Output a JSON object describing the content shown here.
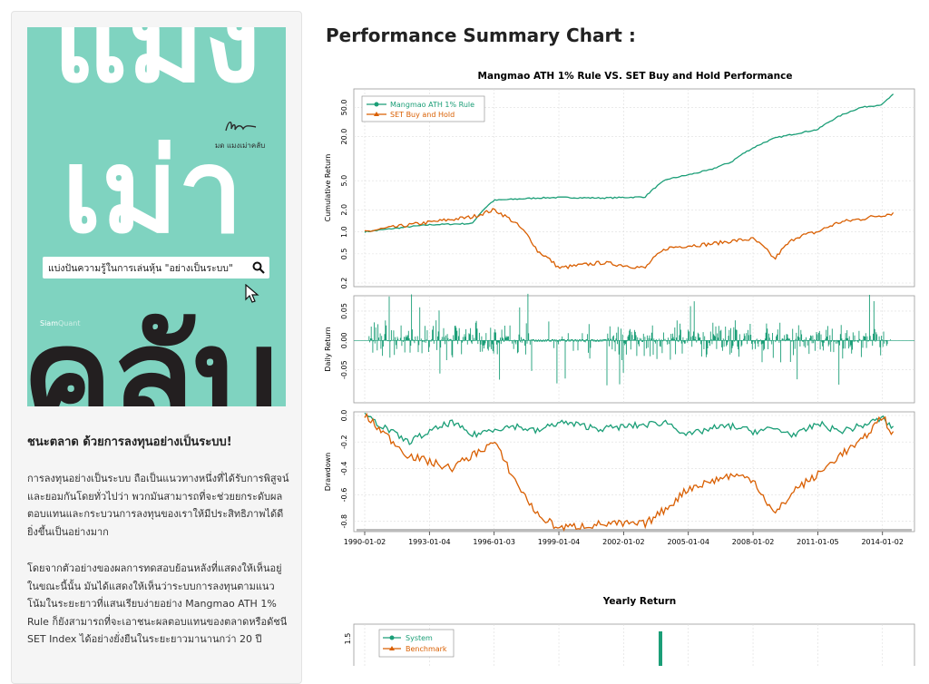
{
  "sidebar": {
    "cover": {
      "big_word_1": "แมง",
      "big_word_2": "เม่า",
      "big_word_3": "คลับ",
      "author": "มด แมงเม่าคลับ",
      "tagline": "แบ่งปันความรู้ในการเล่นหุ้น \"อย่างเป็นระบบ\"",
      "brand_a": "Siam",
      "brand_b": "Quant"
    },
    "heading": "ชนะตลาด ด้วยการลงทุนอย่างเป็นระบบ!",
    "paragraph_1": "การลงทุนอย่างเป็นระบบ ถือเป็นแนวทางหนึ่งที่ได้รับการพิสูจน์และยอมกันโดยทั่วไปว่า พวกมันสามารถที่จะช่วยยกระดับผลตอบแทนและกระบวนการลงทุนของเราให้มีประสิทธิภาพได้ดียิ่งขึ้นเป็นอย่างมาก",
    "paragraph_2": "โดยจากตัวอย่างของผลการทดสอบย้อนหลังที่แสดงให้เห็นอยู่ในขณะนี้นั้น มันได้แสดงให้เห็นว่าระบบการลงทุนตามแนวโน้มในระยะยาวที่แสนเรียบง่ายอย่าง Mangmao ATH 1% Rule ก็ยังสามารถที่จะเอาชนะผลตอบแทนของตลาดหรือดัชนี SET Index ได้อย่างยั่งยืนในระยะยาวมานานกว่า 20 ปี"
  },
  "main": {
    "title": "Performance Summary Chart :"
  },
  "colors": {
    "system": "#1b9e77",
    "benchmark": "#d95f02"
  },
  "chart_data": [
    {
      "type": "line",
      "title": "Mangmao ATH 1% Rule VS. SET Buy and Hold Performance",
      "ylabel": "Cumulative Return",
      "scale": "log",
      "ylim": [
        0.2,
        80
      ],
      "yticks": [
        "0.2",
        "0.5",
        "1.0",
        "2.0",
        "5.0",
        "20.0",
        "50.0"
      ],
      "legend": [
        "Mangmao ATH 1% Rule",
        "SET Buy and Hold"
      ],
      "legend_position": "top-left",
      "x": [
        "1990",
        "1993",
        "1995",
        "1996",
        "1997",
        "1998",
        "1999",
        "2001",
        "2003",
        "2004",
        "2005",
        "2006",
        "2007",
        "2008",
        "2009",
        "2010",
        "2011",
        "2012",
        "2013",
        "2014",
        "2014.5"
      ],
      "series": [
        {
          "name": "Mangmao ATH 1% Rule",
          "values": [
            1.0,
            1.25,
            1.3,
            2.7,
            2.8,
            2.9,
            2.95,
            2.9,
            3.0,
            5.2,
            6.0,
            7.0,
            9.0,
            14.0,
            19.0,
            22.0,
            25.0,
            38.0,
            50.0,
            55.0,
            75.0
          ]
        },
        {
          "name": "SET Buy and Hold",
          "values": [
            1.0,
            1.35,
            1.6,
            2.0,
            1.3,
            0.55,
            0.32,
            0.38,
            0.32,
            0.6,
            0.65,
            0.68,
            0.75,
            0.8,
            0.42,
            0.85,
            1.0,
            1.35,
            1.5,
            1.7,
            1.8
          ]
        }
      ]
    },
    {
      "type": "line",
      "ylabel": "Daily Return",
      "ylim": [
        -0.1,
        0.07
      ],
      "yticks": [
        "-0.05",
        "0.00",
        "0.05"
      ],
      "series": [
        {
          "name": "Daily Return",
          "values": []
        }
      ]
    },
    {
      "type": "line",
      "ylabel": "Drawdown",
      "ylim": [
        -0.85,
        0.0
      ],
      "yticks": [
        "0.0",
        "-0.2",
        "-0.4",
        "-0.6",
        "-0.8"
      ],
      "x": [
        "1990",
        "1992",
        "1994",
        "1995",
        "1996",
        "1997",
        "1998",
        "1999",
        "2001",
        "2003",
        "2004",
        "2005",
        "2006",
        "2007",
        "2008",
        "2009",
        "2010",
        "2011",
        "2012",
        "2013",
        "2014",
        "2014.5"
      ],
      "series": [
        {
          "name": "System",
          "values": [
            0.0,
            -0.2,
            -0.05,
            -0.15,
            -0.1,
            -0.08,
            -0.12,
            -0.05,
            -0.1,
            -0.07,
            -0.05,
            -0.15,
            -0.1,
            -0.08,
            -0.12,
            -0.1,
            -0.15,
            -0.06,
            -0.12,
            -0.08,
            -0.02,
            -0.1
          ]
        },
        {
          "name": "Benchmark",
          "values": [
            0.0,
            -0.3,
            -0.4,
            -0.3,
            -0.2,
            -0.5,
            -0.75,
            -0.85,
            -0.82,
            -0.82,
            -0.7,
            -0.55,
            -0.5,
            -0.45,
            -0.48,
            -0.75,
            -0.55,
            -0.45,
            -0.3,
            -0.2,
            0.0,
            -0.15
          ]
        }
      ],
      "xticks": [
        "1990-01-02",
        "1993-01-04",
        "1996-01-03",
        "1999-01-04",
        "2002-01-02",
        "2005-01-04",
        "2008-01-02",
        "2011-01-05",
        "2014-01-02"
      ]
    },
    {
      "type": "bar",
      "title": "Yearly Return",
      "ylabel": "",
      "yticks": [
        "1.5"
      ],
      "legend": [
        "System",
        "Benchmark"
      ],
      "legend_position": "top-left"
    }
  ]
}
